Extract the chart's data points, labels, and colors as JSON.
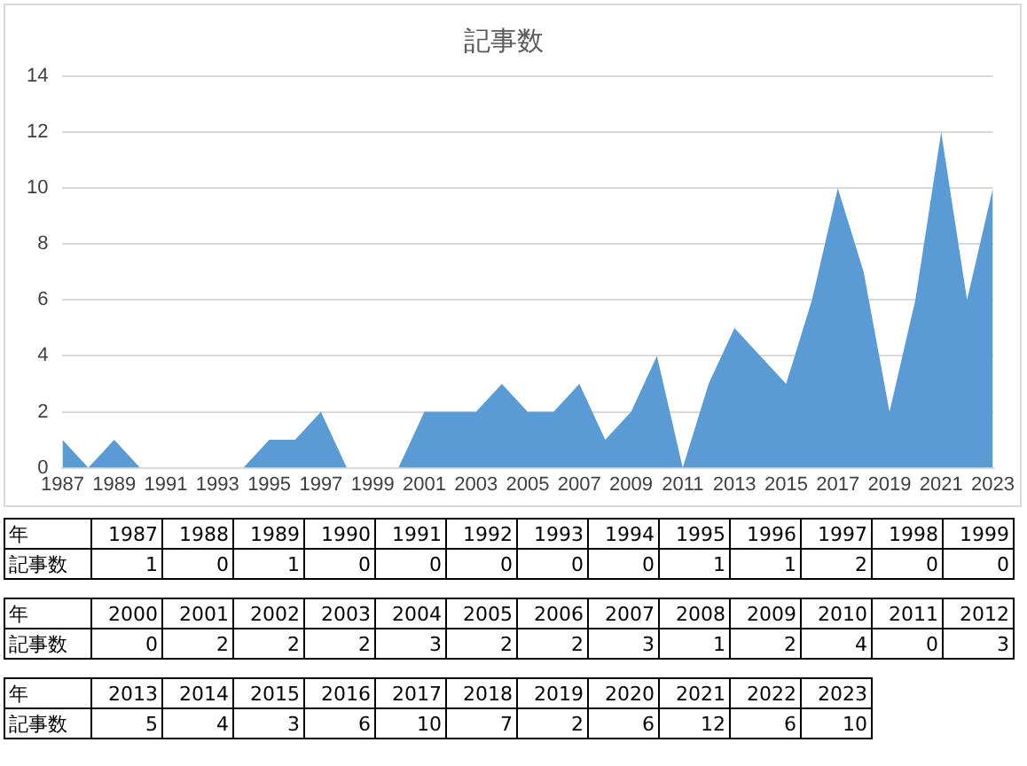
{
  "chart_data": [
    {
      "type": "area",
      "title": "記事数",
      "x": [
        1987,
        1988,
        1989,
        1990,
        1991,
        1992,
        1993,
        1994,
        1995,
        1996,
        1997,
        1998,
        1999,
        2000,
        2001,
        2002,
        2003,
        2004,
        2005,
        2006,
        2007,
        2008,
        2009,
        2010,
        2011,
        2012,
        2013,
        2014,
        2015,
        2016,
        2017,
        2018,
        2019,
        2020,
        2021,
        2022,
        2023
      ],
      "series": [
        {
          "color": "#5b9bd5",
          "values": [
            1,
            0,
            1,
            0,
            0,
            0,
            0,
            0,
            1,
            1,
            2,
            0,
            0,
            0,
            2,
            2,
            2,
            3,
            2,
            2,
            3,
            1,
            2,
            4,
            0,
            3,
            5,
            4,
            3,
            6,
            10,
            7,
            2,
            6,
            12,
            6,
            10
          ]
        }
      ],
      "xlim": [
        1987,
        2023
      ],
      "xticks": [
        1987,
        1989,
        1991,
        1993,
        1995,
        1997,
        1999,
        2001,
        2003,
        2005,
        2007,
        2009,
        2011,
        2013,
        2015,
        2017,
        2019,
        2021,
        2023
      ],
      "ylim": [
        0,
        14
      ],
      "yticks": [
        0,
        2,
        4,
        6,
        8,
        10,
        12,
        14
      ],
      "grid": "y"
    },
    {
      "type": "heatmap",
      "xlabel": "年",
      "categories": [
        "1987",
        "1988",
        "1989",
        "1990",
        "1991",
        "1992",
        "1993",
        "1994",
        "1995",
        "1996",
        "1997",
        "1998",
        "1999"
      ],
      "y_categories": [
        "記事数"
      ],
      "cells": [
        [
          1,
          0,
          1,
          0,
          0,
          0,
          0,
          0,
          1,
          1,
          2,
          0,
          0
        ]
      ],
      "data_labels": true
    },
    {
      "type": "heatmap",
      "xlabel": "年",
      "categories": [
        "2000",
        "2001",
        "2002",
        "2003",
        "2004",
        "2005",
        "2006",
        "2007",
        "2008",
        "2009",
        "2010",
        "2011",
        "2012"
      ],
      "y_categories": [
        "記事数"
      ],
      "cells": [
        [
          0,
          2,
          2,
          2,
          3,
          2,
          2,
          3,
          1,
          2,
          4,
          0,
          3
        ]
      ],
      "data_labels": true
    },
    {
      "type": "heatmap",
      "xlabel": "年",
      "categories": [
        "2013",
        "2014",
        "2015",
        "2016",
        "2017",
        "2018",
        "2019",
        "2020",
        "2021",
        "2022",
        "2023"
      ],
      "y_categories": [
        "記事数"
      ],
      "cells": [
        [
          5,
          4,
          3,
          6,
          10,
          7,
          2,
          6,
          12,
          6,
          10
        ]
      ],
      "data_labels": true
    }
  ]
}
